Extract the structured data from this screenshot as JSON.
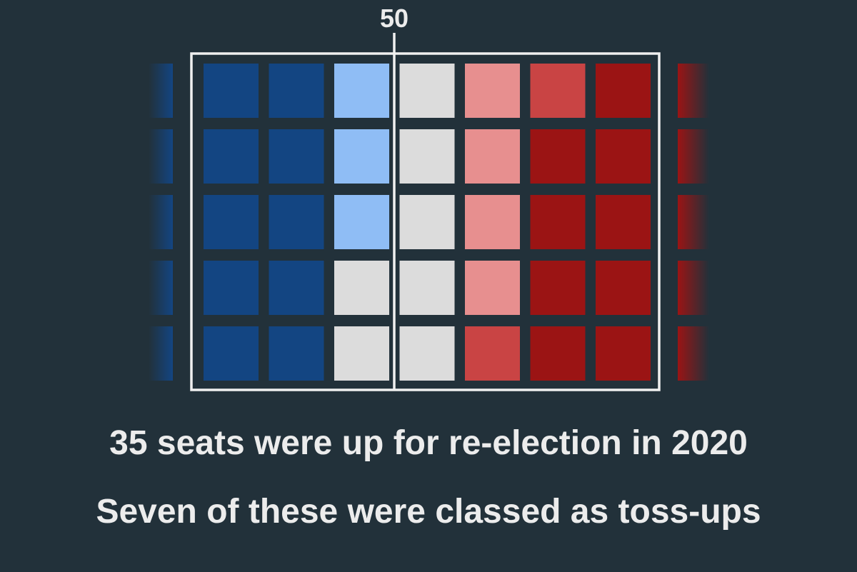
{
  "colors": {
    "background": "#22313a",
    "solid_dem": "#134582",
    "lean_dem": "#8fbdf5",
    "toss_up": "#dcdcdc",
    "lean_rep": "#e78f8f",
    "likely_rep": "#c94444",
    "solid_rep": "#9b1414",
    "frame": "#f0f0f0",
    "text": "#ececec"
  },
  "chart_data": {
    "type": "waffle",
    "title": "",
    "majority_marker_label": "50",
    "rows": 5,
    "visible_columns": 7,
    "cells_by_column": [
      [
        "solid_dem",
        "solid_dem",
        "solid_dem",
        "solid_dem",
        "solid_dem"
      ],
      [
        "solid_dem",
        "solid_dem",
        "solid_dem",
        "solid_dem",
        "solid_dem"
      ],
      [
        "lean_dem",
        "lean_dem",
        "lean_dem",
        "toss_up",
        "toss_up"
      ],
      [
        "toss_up",
        "toss_up",
        "toss_up",
        "toss_up",
        "toss_up"
      ],
      [
        "lean_rep",
        "lean_rep",
        "lean_rep",
        "lean_rep",
        "likely_rep"
      ],
      [
        "likely_rep",
        "solid_rep",
        "solid_rep",
        "solid_rep",
        "solid_rep"
      ],
      [
        "solid_rep",
        "solid_rep",
        "solid_rep",
        "solid_rep",
        "solid_rep"
      ]
    ],
    "faded_edge_left": "solid_dem",
    "faded_edge_right": "solid_rep",
    "seats_up": 35,
    "toss_ups": 7
  },
  "captions": {
    "line1": "35 seats were up for re-election in 2020",
    "line2": "Seven of these were classed as toss-ups"
  }
}
